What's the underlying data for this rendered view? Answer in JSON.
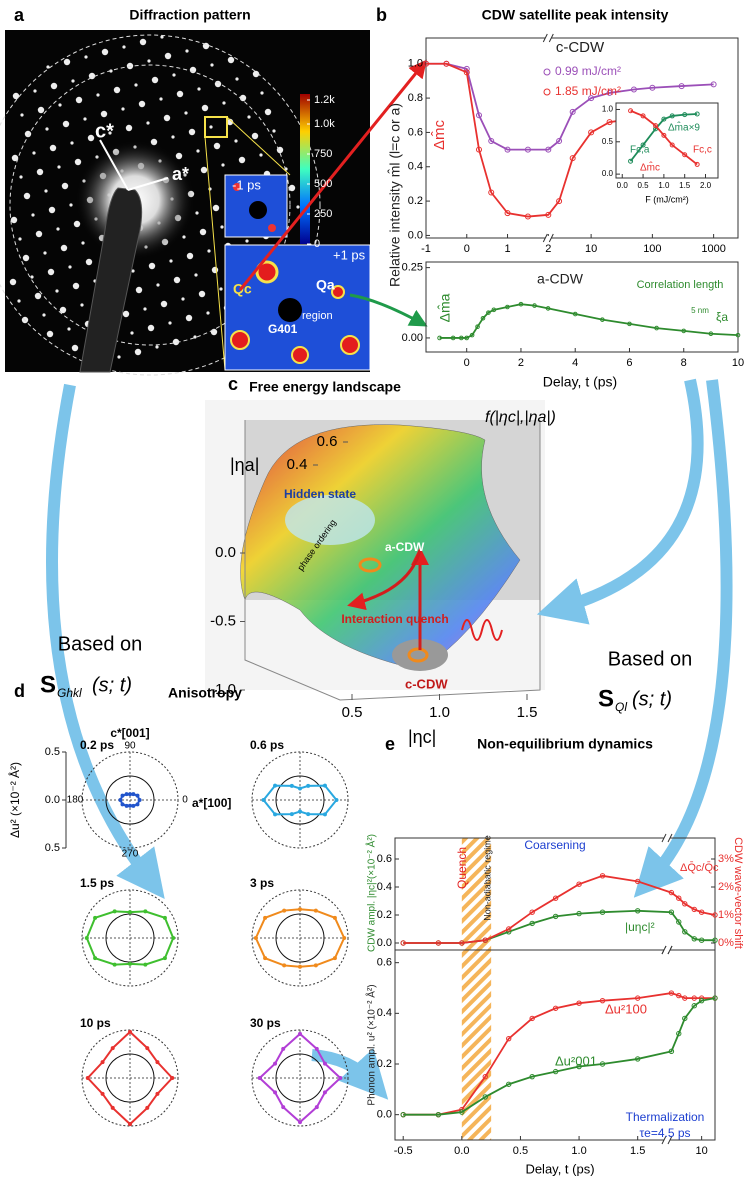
{
  "panels": {
    "a": {
      "label": "a",
      "title": "Diffraction pattern",
      "annotations": [
        "c*",
        "a*",
        "-1 ps",
        "+1 ps",
        "Qc",
        "Qa",
        "G401",
        "region"
      ],
      "colorbar": {
        "lim": [
          0,
          1250
        ],
        "ticks": [
          {
            "value": 1200,
            "label": "1.2k"
          },
          {
            "value": 1000,
            "label": "1.0k"
          },
          750,
          500,
          250,
          0
        ]
      }
    },
    "c": {
      "label": "c",
      "title": "Free energy landscape",
      "annotations": [
        "f(|ηc|,|ηa|)",
        "Hidden state",
        "a-CDW",
        "phase ordering",
        "Interaction quench",
        "c-CDW"
      ],
      "axis_labels": [
        "|ηa|",
        "|ηc|"
      ],
      "f_ticks": [
        {
          "value": 0,
          "label": "0.0"
        },
        -0.5,
        {
          "value": -1,
          "label": "-1.0"
        }
      ],
      "eta_a_ticks": [
        0.6,
        0.4
      ],
      "eta_c_ticks": [
        0.5,
        {
          "value": 1,
          "label": "1.0"
        },
        1.5
      ]
    }
  },
  "arrows": [
    {
      "text": "Based on",
      "symbol": "S",
      "subscript": "Ghkl",
      "args": "(s; t)"
    },
    {
      "text": "Based on",
      "symbol": "S",
      "subscript": "Ql",
      "args": "(s; t)"
    }
  ],
  "chart_data": [
    {
      "type": "line",
      "panel": "b",
      "title": "CDW satellite peak intensity",
      "y_label": "Relative intensity m̂l (l=c or a)",
      "x": [
        -1,
        -0.5,
        0,
        0.3,
        0.6,
        1,
        1.5,
        2,
        3,
        5,
        10,
        20,
        50,
        100,
        300,
        1000
      ],
      "xlim": [
        -1,
        2500
      ],
      "xbreak": [
        2,
        2
      ],
      "xticks": [
        -1,
        0,
        1,
        2,
        10,
        100,
        1000
      ],
      "ylim": [
        -0.015,
        1.15
      ],
      "yticks": [
        {
          "value": 0,
          "label": "0.0"
        },
        0.2,
        0.4,
        0.6,
        0.8,
        {
          "value": 1,
          "label": "1.0"
        }
      ],
      "annotations": [
        "c-CDW",
        "Δm̂c"
      ],
      "series": [
        {
          "name": "0.99 mJ/cm²",
          "color": "#9b4fb8",
          "values": [
            1.0,
            1.0,
            0.97,
            0.7,
            0.55,
            0.5,
            0.5,
            0.5,
            0.55,
            0.72,
            0.8,
            0.83,
            0.85,
            0.86,
            0.87,
            0.88
          ]
        },
        {
          "name": "1.85 mJ/cm²",
          "color": "#e8312f",
          "values": [
            1.0,
            1.0,
            0.95,
            0.5,
            0.25,
            0.13,
            0.11,
            0.12,
            0.2,
            0.45,
            0.6,
            0.66,
            0.68,
            0.7,
            0.71,
            0.72
          ]
        }
      ]
    },
    {
      "type": "line",
      "x_label": "Delay, t (ps)",
      "x": [
        -1,
        -0.5,
        -0.2,
        0,
        0.2,
        0.4,
        0.6,
        0.8,
        1,
        1.5,
        2,
        2.5,
        3,
        4,
        5,
        6,
        7,
        8,
        9,
        10
      ],
      "xlim": [
        -1.5,
        10
      ],
      "xticks": [
        0,
        2,
        4,
        6,
        8,
        10
      ],
      "ylim": [
        -0.05,
        0.27
      ],
      "yticks": [
        {
          "value": 0,
          "label": "0.00"
        },
        {
          "value": 0.25,
          "label": "0.25"
        }
      ],
      "annotations": [
        "a-CDW",
        "Δm̂a",
        "Correlation length",
        "5 nm",
        "ξa"
      ],
      "series": [
        {
          "color": "#2e8b2e",
          "values": [
            0,
            0,
            0,
            0,
            0.01,
            0.04,
            0.07,
            0.09,
            0.1,
            0.11,
            0.12,
            0.115,
            0.105,
            0.085,
            0.065,
            0.05,
            0.035,
            0.025,
            0.015,
            0.01
          ]
        }
      ]
    },
    {
      "type": "line",
      "x_label": "F (mJ/cm²)",
      "x": [
        0.2,
        0.5,
        0.8,
        1.0,
        1.2,
        1.5,
        1.8
      ],
      "xlim": [
        -0.15,
        2.3
      ],
      "xticks": [
        {
          "value": 0,
          "label": "0.0"
        },
        0.5,
        {
          "value": 1,
          "label": "1.0"
        },
        1.5,
        {
          "value": 2,
          "label": "2.0"
        }
      ],
      "ylim": [
        -0.06,
        1.1
      ],
      "yticks": [
        {
          "value": 0,
          "label": "0.0"
        },
        0.5,
        {
          "value": 1,
          "label": "1.0"
        }
      ],
      "annotations": [
        "Fc,a",
        "Fc,c"
      ],
      "series": [
        {
          "name": "Δm̂a×9",
          "color": "#1e8c5a",
          "values": [
            0.2,
            0.45,
            0.7,
            0.85,
            0.9,
            0.92,
            0.93
          ]
        },
        {
          "name": "Δm̂c",
          "color": "#e8312f",
          "values": [
            0.98,
            0.9,
            0.75,
            0.6,
            0.45,
            0.3,
            0.15
          ]
        }
      ]
    },
    {
      "type": "polar",
      "panel": "d",
      "title": "Anisotropy",
      "y_label": "Δu² (×10⁻² Å²)",
      "axis_labels": [
        "c*[001]",
        "a*[100]"
      ],
      "theta": [
        0,
        30,
        60,
        90,
        120,
        150,
        180,
        210,
        240,
        270,
        300,
        330
      ],
      "angle_ticks": [
        90,
        180,
        0,
        270
      ],
      "ylim": [
        -0.5,
        0.5
      ],
      "yticks": [
        0.5,
        {
          "value": 0,
          "label": "0.0"
        },
        {
          "value": -0.5,
          "label": "0.5"
        }
      ],
      "reference_r": 0.25,
      "series": [
        {
          "name": "0.2 ps",
          "color": "#2255cc",
          "values": [
            0.1,
            0.09,
            0.07,
            0.06,
            0.07,
            0.09,
            0.1,
            0.09,
            0.07,
            0.06,
            0.07,
            0.09
          ]
        },
        {
          "name": "0.6 ps",
          "color": "#29a8e0",
          "values": [
            0.38,
            0.3,
            0.17,
            0.12,
            0.17,
            0.3,
            0.38,
            0.3,
            0.17,
            0.12,
            0.17,
            0.3
          ]
        },
        {
          "name": "1.5 ps",
          "color": "#3fbf2f",
          "values": [
            0.45,
            0.42,
            0.32,
            0.27,
            0.32,
            0.42,
            0.45,
            0.42,
            0.32,
            0.27,
            0.32,
            0.42
          ]
        },
        {
          "name": "3 ps",
          "color": "#f08a1c",
          "values": [
            0.46,
            0.42,
            0.33,
            0.3,
            0.33,
            0.42,
            0.46,
            0.42,
            0.33,
            0.3,
            0.33,
            0.42
          ]
        },
        {
          "name": "10 ps",
          "color": "#e8312f",
          "values": [
            0.44,
            0.33,
            0.36,
            0.48,
            0.36,
            0.33,
            0.44,
            0.33,
            0.36,
            0.48,
            0.36,
            0.33
          ]
        },
        {
          "name": "30 ps",
          "color": "#b23ed6",
          "values": [
            0.42,
            0.3,
            0.35,
            0.46,
            0.35,
            0.3,
            0.42,
            0.3,
            0.35,
            0.46,
            0.35,
            0.3
          ]
        }
      ]
    },
    {
      "type": "line",
      "panel": "e",
      "title": "Non-equilibrium dynamics",
      "y_label": "CDW ampl. |ηc|²(×10⁻² Å²)",
      "y2_label": "CDW wave-vector shift",
      "x": [
        -0.5,
        -0.2,
        0,
        0.2,
        0.4,
        0.6,
        0.8,
        1.0,
        1.2,
        1.5,
        4,
        5,
        6,
        8,
        10,
        15
      ],
      "xlim": [
        -0.57,
        15
      ],
      "xbreak": [
        1.75,
        3.5
      ],
      "shade": [
        0,
        0.25
      ],
      "ylim": [
        -0.05,
        0.75
      ],
      "yticks": [
        {
          "value": 0,
          "label": "0.0"
        },
        0.2,
        0.4,
        0.6
      ],
      "y2lim": [
        -0.25,
        3.75
      ],
      "y2ticks": [
        {
          "value": 0,
          "label": "0%"
        },
        {
          "value": 1,
          "label": "1%"
        },
        {
          "value": 2,
          "label": "2%"
        },
        {
          "value": 3,
          "label": "3%"
        }
      ],
      "annotations": [
        "Quench",
        "Non-adiabatic regime",
        "Coarsening"
      ],
      "series": [
        {
          "name": "|uηc|²",
          "color": "#2e8b2e",
          "values": [
            0,
            0,
            0,
            0.02,
            0.08,
            0.14,
            0.19,
            0.21,
            0.22,
            0.23,
            0.22,
            0.15,
            0.08,
            0.03,
            0.02,
            0.02
          ]
        },
        {
          "name": "ΔQ̄c/Q̄c",
          "color": "#e8312f",
          "axis": "y2",
          "values": [
            0,
            0,
            0,
            0.1,
            0.5,
            1.1,
            1.6,
            2.1,
            2.4,
            2.2,
            1.8,
            1.6,
            1.4,
            1.2,
            1.1,
            1.0
          ]
        }
      ]
    },
    {
      "type": "line",
      "y_label": "Phonon ampl. u² (×10⁻² Å²)",
      "x_label": "Delay, t (ps)",
      "x": [
        -0.5,
        -0.2,
        0,
        0.2,
        0.4,
        0.6,
        0.8,
        1.0,
        1.2,
        1.5,
        4,
        5,
        6,
        8,
        10,
        15
      ],
      "xlim": [
        -0.57,
        15
      ],
      "xbreak": [
        1.75,
        3.5
      ],
      "shade": [
        0,
        0.25
      ],
      "xticks": [
        {
          "value": -0.5,
          "label": "-0.5"
        },
        {
          "value": 0,
          "label": "0.0"
        },
        0.5,
        {
          "value": 1,
          "label": "1.0"
        },
        1.5,
        10
      ],
      "ylim": [
        -0.1,
        0.65
      ],
      "yticks": [
        {
          "value": 0,
          "label": "0.0"
        },
        0.2,
        0.4,
        0.6
      ],
      "annotations": [
        "Thermalization",
        "τe=4.5 ps"
      ],
      "series": [
        {
          "name": "Δu²100",
          "color": "#e8312f",
          "values": [
            0,
            0,
            0.02,
            0.15,
            0.3,
            0.38,
            0.42,
            0.44,
            0.45,
            0.46,
            0.48,
            0.47,
            0.46,
            0.46,
            0.46,
            0.46
          ]
        },
        {
          "name": "Δu²001",
          "color": "#2e8b2e",
          "values": [
            0,
            0,
            0.01,
            0.07,
            0.12,
            0.15,
            0.17,
            0.19,
            0.2,
            0.22,
            0.25,
            0.32,
            0.38,
            0.43,
            0.45,
            0.46
          ]
        }
      ]
    }
  ]
}
